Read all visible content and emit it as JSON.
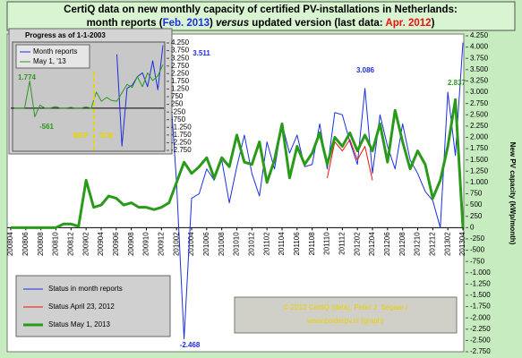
{
  "title": {
    "line1": "CertiQ data on new monthly capacity of certified PV-installations in Netherlands:",
    "line2": [
      "month reports (",
      "Feb. 2013",
      ") ",
      "versus",
      " updated version (last data: ",
      "Apr. 2012",
      ")"
    ]
  },
  "copyright": [
    "© 2013 CertiQ (data), Peter J. Segaar /",
    "www.polderpv.nl (graph)"
  ],
  "chart_data": [
    {
      "type": "line",
      "y_label": "New PV capacity (kWp/month)",
      "legend": "bottom-left",
      "grid": false,
      "categories": [
        "200804",
        null,
        "200806",
        null,
        "200808",
        null,
        "200810",
        null,
        "200812",
        null,
        "200902",
        null,
        "200904",
        null,
        "200906",
        null,
        "200908",
        null,
        "200910",
        null,
        "200912",
        null,
        "201002",
        null,
        "201004",
        null,
        "201006",
        null,
        "201008",
        null,
        "201010",
        null,
        "201012",
        null,
        "201102",
        null,
        "201104",
        null,
        "201106",
        null,
        "201108",
        null,
        "201110",
        null,
        "201112",
        null,
        "201202",
        null,
        "201204",
        null,
        "201206",
        null,
        "201208",
        null,
        "201210",
        null,
        "201212",
        null,
        "201302",
        null,
        "201304"
      ],
      "series": [
        {
          "name": "Status in month reports",
          "color": "#1c2fe0",
          "width": 1,
          "values": [
            null,
            null,
            null,
            null,
            null,
            null,
            null,
            null,
            null,
            null,
            null,
            null,
            null,
            null,
            null,
            null,
            null,
            null,
            null,
            null,
            null,
            3511,
            1000,
            -2468,
            650,
            750,
            1300,
            1050,
            1500,
            550,
            1350,
            2050,
            1200,
            700,
            1900,
            1300,
            2300,
            1650,
            2050,
            1350,
            1400,
            2300,
            1300,
            2550,
            2500,
            1900,
            1400,
            3086,
            1200,
            2500,
            1800,
            1300,
            2300,
            1500,
            1200,
            800,
            600,
            0,
            3000,
            1600,
            4100
          ]
        },
        {
          "name": "Status April 23, 2012",
          "color": "#ee1111",
          "width": 1,
          "values": [
            null,
            null,
            null,
            null,
            null,
            null,
            null,
            null,
            null,
            null,
            null,
            null,
            null,
            null,
            null,
            null,
            null,
            null,
            null,
            null,
            null,
            null,
            null,
            null,
            null,
            null,
            null,
            null,
            null,
            null,
            null,
            null,
            null,
            null,
            null,
            null,
            null,
            null,
            null,
            null,
            null,
            null,
            1100,
            1900,
            1700,
            1950,
            1500,
            1800,
            1050,
            null,
            null,
            null,
            null,
            null,
            null,
            null,
            null,
            null,
            null,
            null,
            null
          ]
        },
        {
          "name": "Status May 1, 2013",
          "color": "#2a9a1a",
          "width": 3,
          "values": [
            0,
            0,
            0,
            0,
            0,
            0,
            0,
            80,
            80,
            30,
            1050,
            450,
            500,
            700,
            650,
            500,
            550,
            450,
            450,
            400,
            450,
            550,
            1000,
            1450,
            1200,
            1350,
            1550,
            1100,
            1550,
            1350,
            2050,
            1450,
            1400,
            1900,
            1000,
            1500,
            2300,
            1100,
            1800,
            1400,
            1650,
            2100,
            1400,
            2000,
            1800,
            2100,
            1700,
            2050,
            1700,
            2300,
            1450,
            2600,
            1900,
            1300,
            1700,
            1400,
            650,
            1050,
            1800,
            2837,
            0
          ]
        }
      ],
      "annotations": [
        {
          "text": "3.511",
          "color": "#1c2fe0"
        },
        {
          "text": "3.086",
          "color": "#1c2fe0"
        },
        {
          "text": "-2.468",
          "color": "#1c2fe0"
        },
        {
          "text": "2.837",
          "color": "#2a9a1a"
        }
      ],
      "ylim": [
        -2750,
        4250
      ],
      "yticks": [
        {
          "value": 4250,
          "label": "4.250"
        },
        {
          "value": 4000,
          "label": "4.000"
        },
        {
          "value": 3750,
          "label": "3.750"
        },
        {
          "value": 3500,
          "label": "3.500"
        },
        {
          "value": 3250,
          "label": "3.250"
        },
        {
          "value": 3000,
          "label": "3.000"
        },
        {
          "value": 2750,
          "label": "2.750"
        },
        {
          "value": 2500,
          "label": "2.500"
        },
        {
          "value": 2250,
          "label": "2.250"
        },
        {
          "value": 2000,
          "label": "2.000"
        },
        {
          "value": 1750,
          "label": "1.750"
        },
        {
          "value": 1500,
          "label": "1.500"
        },
        {
          "value": 1250,
          "label": "1.250"
        },
        {
          "value": 1000,
          "label": "1.000"
        },
        750,
        500,
        250,
        0,
        -250,
        -500,
        -750,
        {
          "value": -1000,
          "label": "-1.000"
        },
        {
          "value": -1250,
          "label": "-1.250"
        },
        {
          "value": -1500,
          "label": "-1.500"
        },
        {
          "value": -1750,
          "label": "-1.750"
        },
        {
          "value": -2000,
          "label": "-2.000"
        },
        {
          "value": -2250,
          "label": "-2.250"
        },
        {
          "value": -2500,
          "label": "-2.500"
        },
        {
          "value": -2750,
          "label": "-2.750"
        }
      ]
    },
    {
      "type": "line",
      "title": "Progress as of 1-1-2003",
      "legend": "top-left",
      "categories": [
        null,
        null,
        null,
        null,
        null,
        null,
        null,
        null,
        null,
        null,
        null,
        null,
        null,
        null,
        null,
        null,
        null,
        null,
        null,
        null,
        null,
        null,
        null,
        null,
        null,
        null,
        null,
        null,
        null,
        null
      ],
      "series": [
        {
          "name": "Month reports",
          "color": "#1c2fe0",
          "width": 1,
          "values": [
            null,
            null,
            null,
            null,
            null,
            null,
            null,
            null,
            null,
            null,
            null,
            null,
            null,
            null,
            null,
            null,
            null,
            null,
            null,
            null,
            3511,
            -2468,
            1300,
            1500,
            2050,
            2300,
            1400,
            3086,
            1200,
            4100
          ]
        },
        {
          "name": "May 1, '13",
          "color": "#2a9a1a",
          "width": 1,
          "values": [
            0,
            0,
            0,
            1774,
            -561,
            200,
            0,
            0,
            100,
            0,
            0,
            50,
            0,
            0,
            80,
            0,
            1050,
            450,
            700,
            500,
            450,
            1000,
            1550,
            1350,
            2050,
            1400,
            2300,
            1800,
            2100,
            2837
          ]
        }
      ],
      "annotations": [
        {
          "text": "1.774",
          "color": "#2a9a1a"
        },
        {
          "text": "-561",
          "color": "#2a9a1a"
        },
        {
          "text": "MEP",
          "color": "#e8d400"
        },
        {
          "text": "SDE",
          "color": "#e8d400"
        }
      ],
      "ylim": [
        -2750,
        4250
      ],
      "yticks": [
        {
          "value": 4250,
          "label": "4.250"
        },
        {
          "value": 3750,
          "label": "3.750"
        },
        {
          "value": 3250,
          "label": "3.250"
        },
        {
          "value": 2750,
          "label": "2.750"
        },
        {
          "value": 2250,
          "label": "2.250"
        },
        {
          "value": 1750,
          "label": "1.750"
        },
        {
          "value": 1250,
          "label": "1.250"
        },
        750,
        250,
        -250,
        -750,
        {
          "value": -1250,
          "label": "-1.250"
        },
        {
          "value": -1750,
          "label": "-1.750"
        },
        {
          "value": -2250,
          "label": "-2.250"
        },
        {
          "value": -2750,
          "label": "-2.750"
        }
      ]
    }
  ]
}
